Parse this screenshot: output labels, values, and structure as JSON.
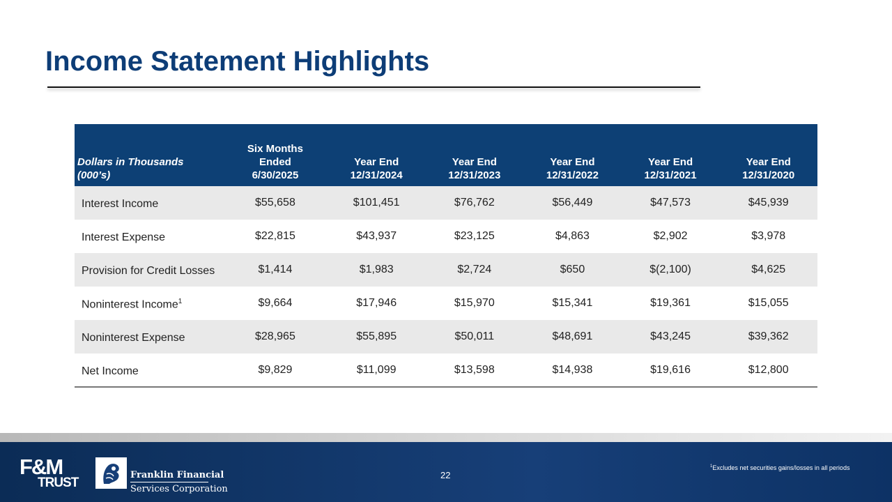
{
  "title": "Income Statement Highlights",
  "table": {
    "label_header": [
      "Dollars in Thousands",
      "(000’s)"
    ],
    "columns": [
      "Six Months\nEnded\n6/30/2025",
      "Year End\n12/31/2024",
      "Year End\n12/31/2023",
      "Year End\n12/31/2022",
      "Year End\n12/31/2021",
      "Year End\n12/31/2020"
    ],
    "rows": [
      {
        "label": "Interest Income",
        "sup": "",
        "values": [
          "$55,658",
          "$101,451",
          "$76,762",
          "$56,449",
          "$47,573",
          "$45,939"
        ]
      },
      {
        "label": "Interest Expense",
        "sup": "",
        "values": [
          "$22,815",
          "$43,937",
          "$23,125",
          "$4,863",
          "$2,902",
          "$3,978"
        ]
      },
      {
        "label": "Provision for Credit Losses",
        "sup": "",
        "values": [
          "$1,414",
          "$1,983",
          "$2,724",
          "$650",
          "$(2,100)",
          "$4,625"
        ]
      },
      {
        "label": "Noninterest Income",
        "sup": "1",
        "values": [
          "$9,664",
          "$17,946",
          "$15,970",
          "$15,341",
          "$19,361",
          "$15,055"
        ]
      },
      {
        "label": "Noninterest Expense",
        "sup": "",
        "values": [
          "$28,965",
          "$55,895",
          "$50,011",
          "$48,691",
          "$43,245",
          "$39,362"
        ]
      },
      {
        "label": "Net Income",
        "sup": "",
        "values": [
          "$9,829",
          "$11,099",
          "$13,598",
          "$14,938",
          "$19,616",
          "$12,800"
        ]
      }
    ]
  },
  "footer": {
    "logo_fm": "F&M",
    "logo_trust": "TRUST",
    "company_line1": "Franklin Financial",
    "company_line2": "Services Corporation",
    "page_number": "22",
    "footnote_mark": "1",
    "footnote_text": "Excludes net securities gains/losses in all periods"
  },
  "colors": {
    "title": "#0d3d77",
    "header_bg": "#0d4075",
    "shaded_row": "#e9e9e9",
    "footer_bg": "#173f78"
  }
}
